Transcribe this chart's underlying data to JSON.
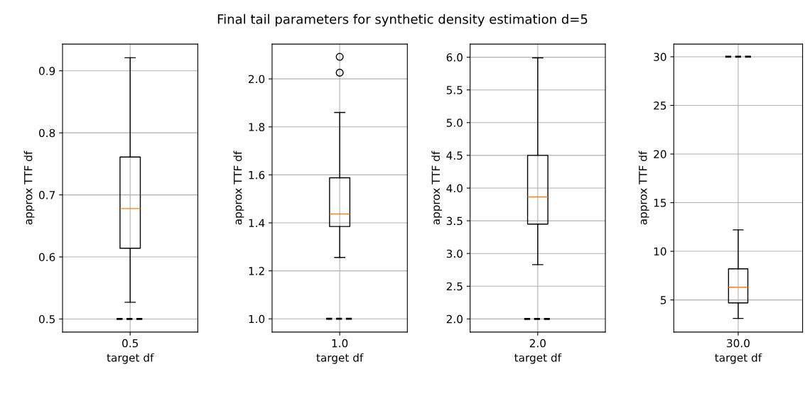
{
  "chart_data": [
    {
      "type": "box",
      "categories": [
        "0.5"
      ],
      "xlabel": "target df",
      "ylabel": "approx TTF df",
      "grid": true,
      "ylim": [
        0.479,
        0.943
      ],
      "yticks": [
        0.5,
        0.6,
        0.7,
        0.8,
        0.9
      ],
      "boxes": [
        {
          "low": 0.527,
          "q1": 0.614,
          "median": 0.678,
          "q3": 0.761,
          "high": 0.921
        }
      ],
      "ref_lines": [
        {
          "axis": "y",
          "value": 0.5,
          "color": "#000000",
          "line_style": "dashed"
        }
      ]
    },
    {
      "type": "box",
      "title": "Final tail parameters for synthetic density estimation d=5",
      "categories": [
        "1.0"
      ],
      "xlabel": "target df",
      "ylabel": "approx TTF df",
      "grid": true,
      "ylim": [
        0.945,
        2.145
      ],
      "yticks": [
        {
          "value": 1,
          "label": "1.0"
        },
        1.2,
        1.4,
        1.6,
        1.8,
        {
          "value": 2,
          "label": "2.0"
        }
      ],
      "boxes": [
        {
          "low": 1.256,
          "q1": 1.385,
          "median": 1.437,
          "q3": 1.588,
          "high": 1.86,
          "outliers": [
            2.026,
            2.092
          ]
        }
      ],
      "ref_lines": [
        {
          "axis": "y",
          "value": 1,
          "color": "#000000",
          "line_style": "dashed"
        }
      ]
    },
    {
      "type": "box",
      "categories": [
        "2.0"
      ],
      "xlabel": "target df",
      "ylabel": "approx TTF df",
      "grid": true,
      "ylim": [
        1.8,
        6.2
      ],
      "yticks": [
        {
          "value": 2,
          "label": "2.0"
        },
        2.5,
        {
          "value": 3,
          "label": "3.0"
        },
        3.5,
        {
          "value": 4,
          "label": "4.0"
        },
        4.5,
        {
          "value": 5,
          "label": "5.0"
        },
        5.5,
        {
          "value": 6,
          "label": "6.0"
        }
      ],
      "boxes": [
        {
          "low": 2.83,
          "q1": 3.45,
          "median": 3.865,
          "q3": 4.5,
          "high": 5.99
        }
      ],
      "ref_lines": [
        {
          "axis": "y",
          "value": 2,
          "color": "#000000",
          "line_style": "dashed"
        }
      ]
    },
    {
      "type": "box",
      "categories": [
        "30.0"
      ],
      "xlabel": "target df",
      "ylabel": "approx TTF df",
      "grid": true,
      "ylim": [
        1.7,
        31.3
      ],
      "yticks": [
        5,
        10,
        15,
        20,
        25,
        30
      ],
      "boxes": [
        {
          "low": 3.1,
          "q1": 4.7,
          "median": 6.3,
          "q3": 8.2,
          "high": 12.2
        }
      ],
      "ref_lines": [
        {
          "axis": "y",
          "value": 30,
          "color": "#000000",
          "line_style": "dashed"
        }
      ]
    }
  ]
}
